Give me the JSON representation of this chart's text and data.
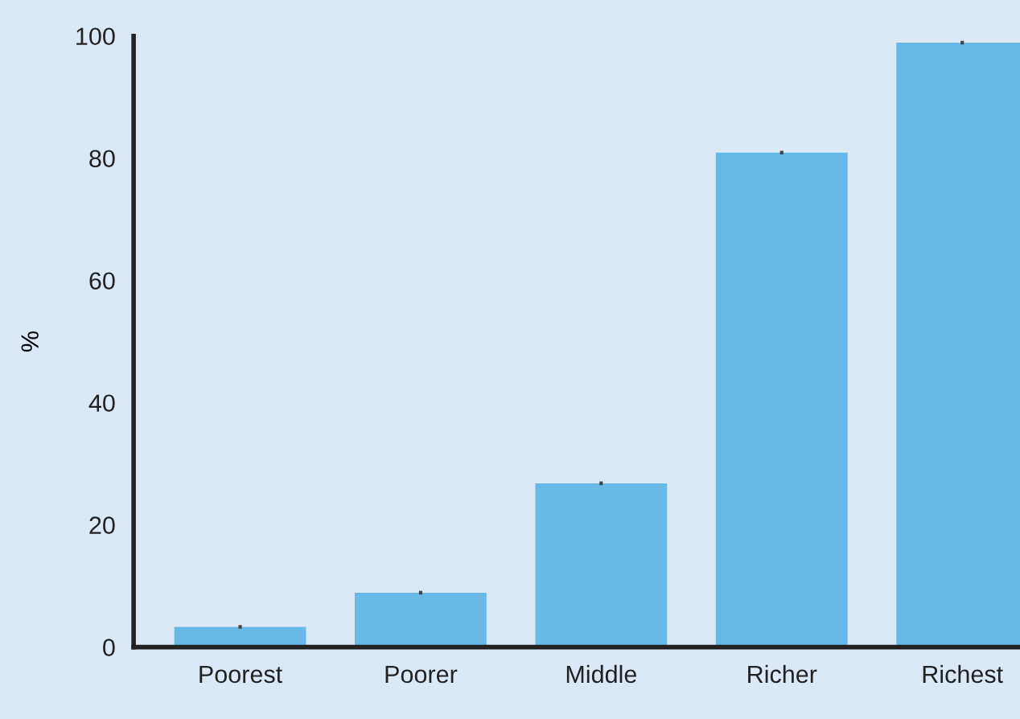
{
  "chart_data": {
    "type": "bar",
    "ylabel": "%",
    "categories": [
      "Poorest",
      "Poorer",
      "Middle",
      "Richer",
      "Richest"
    ],
    "values": [
      3.3,
      8.9,
      26.8,
      80.9,
      98.9
    ],
    "errors": [
      0.3,
      0.3,
      0.3,
      0.3,
      0.3
    ],
    "color": "#69b9e8",
    "ylim": [
      0,
      100
    ],
    "yticks": [
      0,
      20,
      40,
      60,
      80,
      100
    ],
    "grid": false,
    "legend": false
  }
}
